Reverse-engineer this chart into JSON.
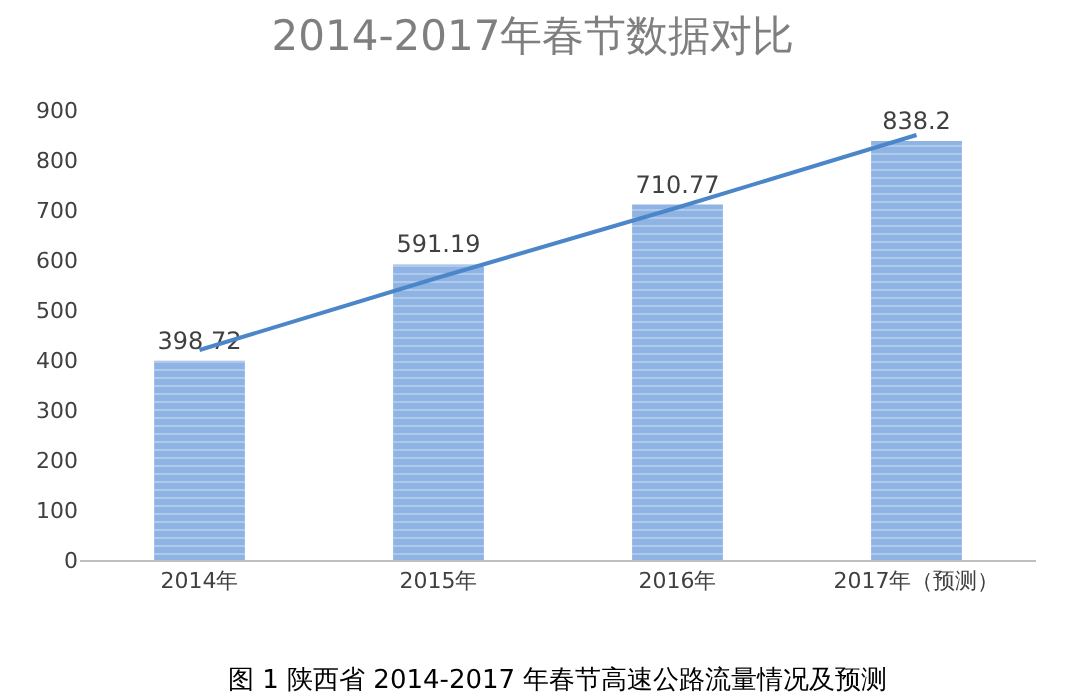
{
  "chart_data": {
    "type": "bar",
    "title": "2014-2017年春节数据对比",
    "categories": [
      "2014年",
      "2015年",
      "2016年",
      "2017年（预测）"
    ],
    "series": [
      {
        "color": "#8fb4e3",
        "values": [
          398.72,
          591.19,
          710.77,
          838.2
        ],
        "value_labels": [
          "398.72",
          "591.19",
          "710.77",
          "838.2"
        ]
      },
      {
        "type": "line",
        "color": "#4a86c8",
        "values": [
          420,
          565,
          705,
          850
        ]
      }
    ],
    "ylim": [
      0,
      900
    ],
    "yticks": [
      0,
      100,
      200,
      300,
      400,
      500,
      600,
      700,
      800,
      900
    ],
    "marker": "none",
    "line_style": "solid",
    "annotations": [
      "图 1 陕西省 2014-2017 年春节高速公路流量情况及预测"
    ]
  }
}
